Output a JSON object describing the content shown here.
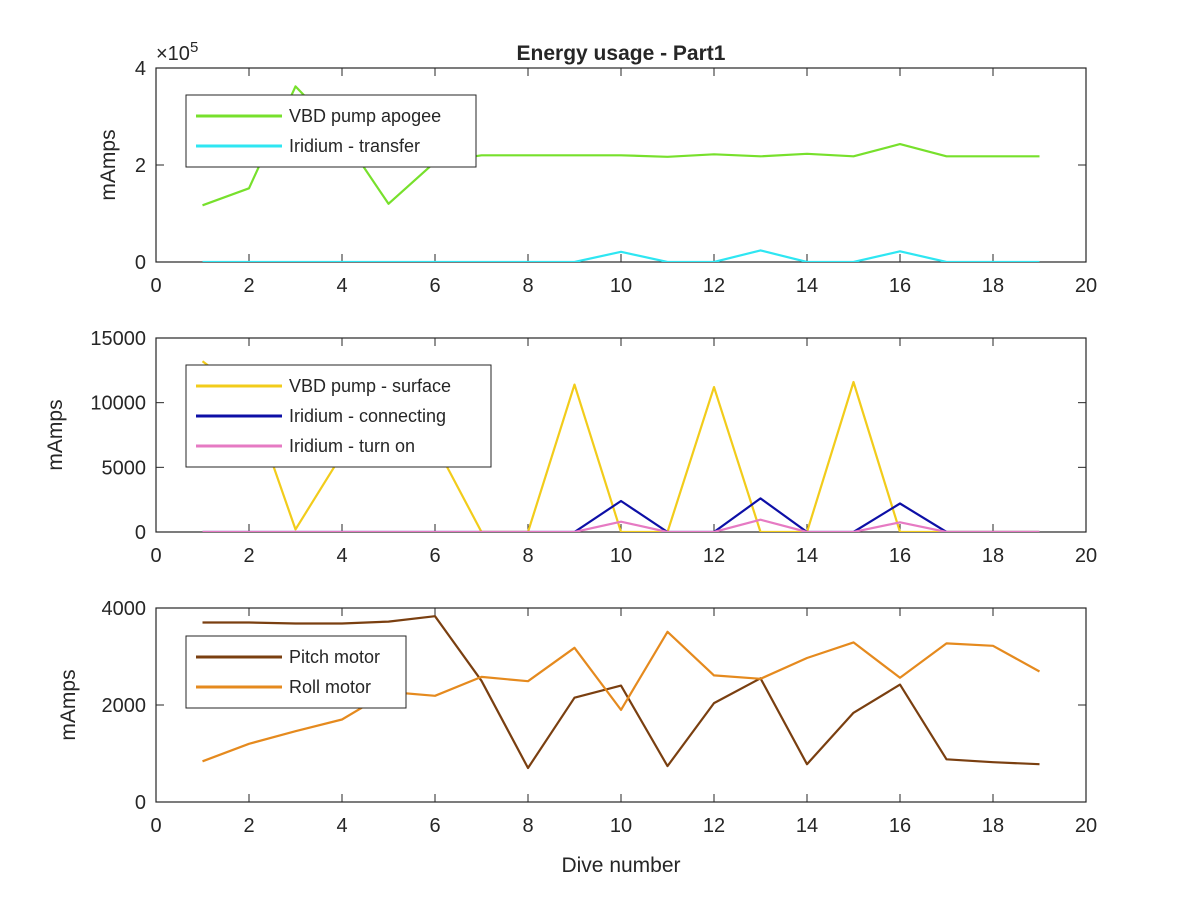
{
  "chart_data": [
    {
      "type": "line",
      "title": "Energy usage - Part1",
      "xlabel": "",
      "ylabel": "mAmps",
      "xlim": [
        0,
        20
      ],
      "ylim": [
        0,
        400000
      ],
      "xticks": [
        "0",
        "2",
        "4",
        "6",
        "8",
        "10",
        "12",
        "14",
        "16",
        "18",
        "20"
      ],
      "yticks": [
        "0",
        "2",
        "4"
      ],
      "exponent_label": "×10",
      "exponent_power": "5",
      "grid": false,
      "legend_position": "top-left",
      "x": [
        1,
        2,
        3,
        4,
        5,
        6,
        7,
        8,
        9,
        10,
        11,
        12,
        13,
        14,
        15,
        16,
        17,
        18,
        19
      ],
      "series": [
        {
          "name": "VBD pump apogee",
          "color": "#77e02c",
          "values": [
            117000,
            152000,
            362000,
            262000,
            120000,
            206000,
            220000,
            220000,
            220000,
            220000,
            217000,
            222000,
            218000,
            223000,
            218000,
            243000,
            218000,
            218000,
            218000
          ]
        },
        {
          "name": "Iridium - transfer",
          "color": "#2ee6f2",
          "values": [
            0,
            0,
            0,
            0,
            0,
            0,
            0,
            0,
            0,
            21000,
            0,
            0,
            24000,
            0,
            0,
            22000,
            0,
            0,
            0
          ]
        }
      ]
    },
    {
      "type": "line",
      "title": "",
      "xlabel": "",
      "ylabel": "mAmps",
      "xlim": [
        0,
        20
      ],
      "ylim": [
        0,
        15000
      ],
      "xticks": [
        "0",
        "2",
        "4",
        "6",
        "8",
        "10",
        "12",
        "14",
        "16",
        "18",
        "20"
      ],
      "yticks": [
        "0",
        "5000",
        "10000",
        "15000"
      ],
      "grid": false,
      "legend_position": "top-left",
      "x": [
        1,
        2,
        3,
        4,
        5,
        6,
        7,
        8,
        9,
        10,
        11,
        12,
        13,
        14,
        15,
        16,
        17,
        18,
        19
      ],
      "series": [
        {
          "name": "VBD pump - surface",
          "color": "#f2cc1b",
          "values": [
            13200,
            10500,
            200,
            6000,
            5500,
            6800,
            0,
            0,
            11400,
            0,
            0,
            11200,
            0,
            0,
            11600,
            0,
            0,
            0,
            0
          ]
        },
        {
          "name": "Iridium - connecting",
          "color": "#0d0fa6",
          "values": [
            0,
            0,
            0,
            0,
            0,
            0,
            0,
            0,
            0,
            2400,
            0,
            0,
            2600,
            0,
            0,
            2200,
            0,
            0,
            0
          ]
        },
        {
          "name": "Iridium - turn on",
          "color": "#e67ac3",
          "values": [
            0,
            0,
            0,
            0,
            0,
            0,
            0,
            0,
            0,
            800,
            0,
            0,
            950,
            0,
            0,
            750,
            0,
            0,
            0
          ]
        }
      ]
    },
    {
      "type": "line",
      "title": "",
      "xlabel": "Dive number",
      "ylabel": "mAmps",
      "xlim": [
        0,
        20
      ],
      "ylim": [
        0,
        4000
      ],
      "xticks": [
        "0",
        "2",
        "4",
        "6",
        "8",
        "10",
        "12",
        "14",
        "16",
        "18",
        "20"
      ],
      "yticks": [
        "0",
        "2000",
        "4000"
      ],
      "grid": false,
      "legend_position": "top-left",
      "x": [
        1,
        2,
        3,
        4,
        5,
        6,
        7,
        8,
        9,
        10,
        11,
        12,
        13,
        14,
        15,
        16,
        17,
        18,
        19
      ],
      "series": [
        {
          "name": "Pitch motor",
          "color": "#7a3f10",
          "values": [
            3700,
            3700,
            3680,
            3680,
            3720,
            3830,
            2500,
            700,
            2150,
            2400,
            740,
            2040,
            2550,
            780,
            1840,
            2420,
            880,
            820,
            780
          ]
        },
        {
          "name": "Roll motor",
          "color": "#e58a1e",
          "values": [
            840,
            1200,
            1460,
            1700,
            2270,
            2190,
            2580,
            2490,
            3180,
            1900,
            3510,
            2610,
            2540,
            2970,
            3290,
            2560,
            3270,
            3220,
            2690
          ]
        }
      ]
    }
  ]
}
